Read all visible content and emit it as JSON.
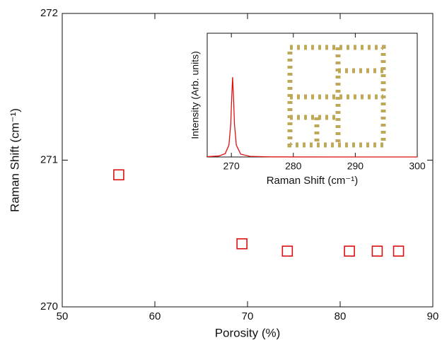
{
  "chart_data": [
    {
      "type": "scatter",
      "xlabel": "Porosity (%)",
      "ylabel": "Raman Shift (cm⁻¹)",
      "x": [
        56.1,
        69.4,
        74.3,
        81.0,
        84.0,
        86.3
      ],
      "values": [
        270.9,
        270.43,
        270.38,
        270.38,
        270.38,
        270.38
      ],
      "color": "#dd1111",
      "xlim": [
        50,
        90
      ],
      "ylim": [
        270,
        272
      ],
      "xticks": [
        50,
        60,
        70,
        80,
        90
      ],
      "yticks": [
        270,
        271,
        272
      ]
    },
    {
      "type": "line",
      "xlabel": "Raman Shift (cm⁻¹)",
      "ylabel": "Intensity (Arb. units)",
      "x": [
        266,
        268,
        269,
        269.6,
        269.9,
        270.05,
        270.2,
        270.35,
        270.5,
        270.8,
        271.5,
        273,
        276,
        280,
        290,
        300
      ],
      "values": [
        0.0035,
        0.0128,
        0.0416,
        0.148,
        0.41,
        0.735,
        1,
        0.735,
        0.41,
        0.148,
        0.0357,
        0.0079,
        0.0019,
        0.00065,
        0.00016,
        7e-05
      ],
      "color": "#dd1111",
      "xlim": [
        266.1,
        300
      ],
      "ylim": [
        0,
        1.55
      ],
      "xticks": [
        270,
        280,
        290,
        300
      ]
    }
  ]
}
